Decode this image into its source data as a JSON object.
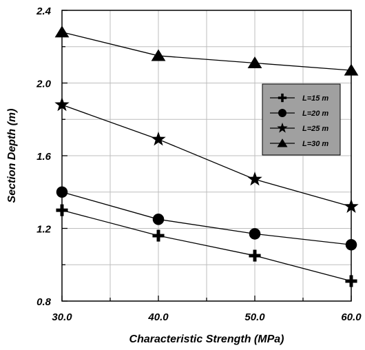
{
  "chart_data": {
    "type": "line",
    "xlabel": "Characteristic Strength (MPa)",
    "ylabel": "Section Depth (m)",
    "x": [
      30,
      40,
      50,
      60
    ],
    "x_tick_labels": [
      "30.0",
      "40.0",
      "50.0",
      "60.0"
    ],
    "y_tick_labels": [
      "0.8",
      "1.2",
      "1.6",
      "2.0",
      "2.4"
    ],
    "xlim": [
      30,
      60
    ],
    "ylim": [
      0.8,
      2.4
    ],
    "grid": true,
    "legend_position": "right",
    "legend_background": "#a0a0a0",
    "series": [
      {
        "name": "L=15 m",
        "marker": "plus",
        "values": [
          1.3,
          1.16,
          1.05,
          0.91
        ]
      },
      {
        "name": "L=20 m",
        "marker": "circle",
        "values": [
          1.4,
          1.25,
          1.17,
          1.11
        ]
      },
      {
        "name": "L=25 m",
        "marker": "star",
        "values": [
          1.88,
          1.69,
          1.47,
          1.32
        ]
      },
      {
        "name": "L=30 m",
        "marker": "triangle",
        "values": [
          2.28,
          2.15,
          2.11,
          2.07
        ]
      }
    ]
  }
}
